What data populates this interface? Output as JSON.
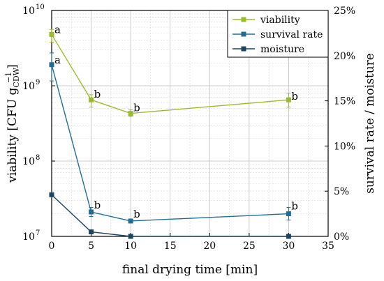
{
  "chart_data": {
    "type": "line",
    "x_axis": {
      "label": "final drying time [min]",
      "ticks": [
        "0",
        "5",
        "10",
        "15",
        "20",
        "25",
        "30",
        "35"
      ],
      "range": [
        0,
        35
      ]
    },
    "y_left": {
      "label_main": "viability [CFU g",
      "label_sub": "CDW",
      "label_sup": "−1",
      "label_end": "]",
      "scale": "log",
      "range": [
        10000000,
        10000000000
      ],
      "ticks": [
        {
          "base": "10",
          "exp": "7"
        },
        {
          "base": "10",
          "exp": "8"
        },
        {
          "base": "10",
          "exp": "9"
        },
        {
          "base": "10",
          "exp": "10"
        }
      ]
    },
    "y_right": {
      "label": "survival rate / moisture",
      "range": [
        0,
        25
      ],
      "ticks": [
        "0%",
        "5%",
        "10%",
        "15%",
        "20%",
        "25%"
      ]
    },
    "grid": true,
    "legend_position": "top-right",
    "series": [
      {
        "name": "viability",
        "axis": "left",
        "color": "#9bbb2e",
        "x": [
          0,
          5,
          10,
          30
        ],
        "y": [
          4800000000,
          650000000,
          430000000,
          650000000
        ],
        "err_low": [
          3800000000,
          520000000,
          390000000,
          520000000
        ],
        "err_high": [
          5600000000,
          760000000,
          480000000,
          800000000
        ],
        "labels": [
          "a",
          "b",
          "b",
          "b"
        ]
      },
      {
        "name": "survival rate",
        "axis": "right",
        "color": "#1f6f95",
        "x": [
          0,
          5,
          10,
          30
        ],
        "y": [
          19,
          2.7,
          1.7,
          2.5
        ],
        "err_low": [
          17.2,
          2.2,
          1.5,
          1.8
        ],
        "err_high": [
          20.3,
          3.2,
          1.9,
          3.2
        ],
        "labels": [
          "a",
          "b",
          "b",
          "b"
        ]
      },
      {
        "name": "moisture",
        "axis": "right",
        "color": "#1b4561",
        "x": [
          0,
          5,
          10,
          30
        ],
        "y": [
          4.6,
          0.5,
          0,
          0
        ],
        "labels": []
      }
    ]
  }
}
